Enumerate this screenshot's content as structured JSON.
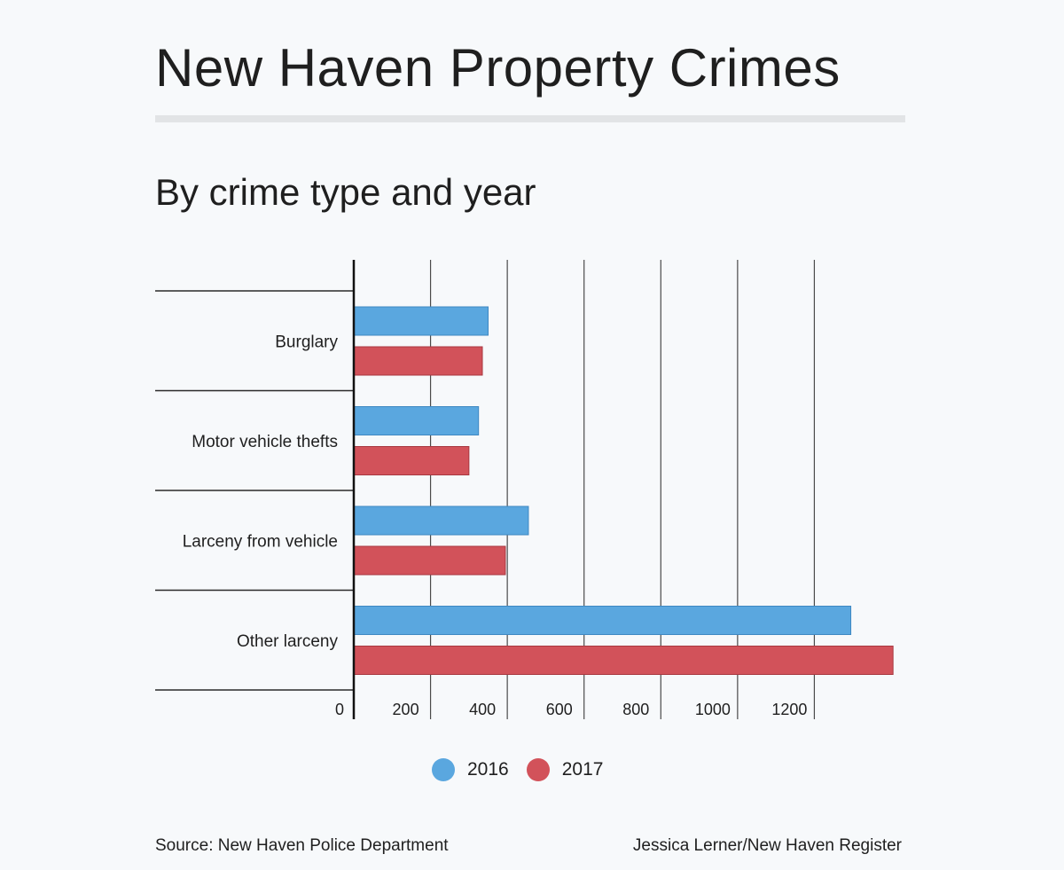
{
  "header": {
    "title": "New Haven Property Crimes",
    "subtitle": "By crime type and year"
  },
  "footer": {
    "source": "Source: New Haven Police Department",
    "credit": "Jessica Lerner/New Haven Register"
  },
  "colors": {
    "series_2016": "#5aa7df",
    "series_2017": "#d2525a",
    "grid": "#4a4a4a",
    "background": "#f7f9fb"
  },
  "chart_data": {
    "type": "bar",
    "orientation": "horizontal",
    "categories": [
      "Burglary",
      "Motor vehicle thefts",
      "Larceny from vehicle",
      "Other larceny"
    ],
    "series": [
      {
        "name": "2016",
        "values": [
          350,
          325,
          455,
          1295
        ]
      },
      {
        "name": "2017",
        "values": [
          335,
          300,
          395,
          1405
        ]
      }
    ],
    "xticks": [
      "0",
      "200",
      "400",
      "600",
      "800",
      "1000",
      "1200"
    ],
    "tick_values": [
      0,
      200,
      400,
      600,
      800,
      1000,
      1200
    ],
    "xlim": [
      0,
      1400
    ],
    "grid": true,
    "legend_position": "bottom-center"
  }
}
